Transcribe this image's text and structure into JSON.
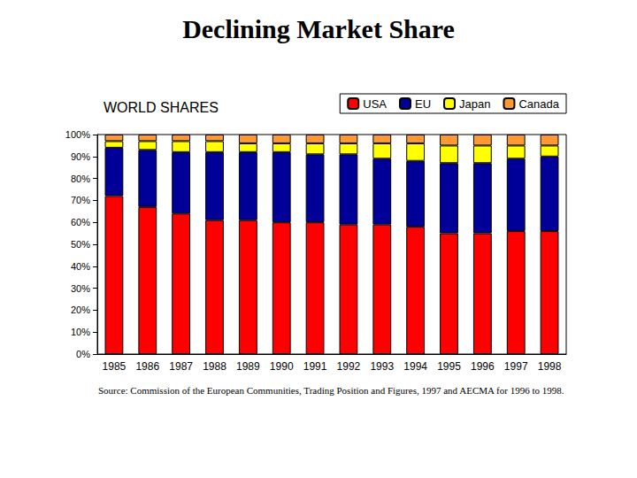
{
  "chart_data": {
    "type": "bar",
    "title": "Declining Market Share",
    "subtitle": "WORLD SHARES",
    "source": "Source: Commission of the European Communities, Trading Position and Figures, 1997 and AECMA for 1996 to 1998.",
    "categories": [
      "1985",
      "1986",
      "1987",
      "1988",
      "1989",
      "1990",
      "1991",
      "1992",
      "1993",
      "1994",
      "1995",
      "1996",
      "1997",
      "1998"
    ],
    "series": [
      {
        "name": "USA",
        "color": "#ff0000",
        "values": [
          72,
          67,
          64,
          61,
          61,
          60,
          60,
          59,
          59,
          58,
          55,
          55,
          56,
          56
        ]
      },
      {
        "name": "EU",
        "color": "#000099",
        "values": [
          22,
          26,
          28,
          31,
          31,
          32,
          31,
          32,
          30,
          30,
          32,
          32,
          33,
          34
        ]
      },
      {
        "name": "Japan",
        "color": "#ffff00",
        "values": [
          3,
          4,
          5,
          5,
          4,
          4,
          5,
          5,
          7,
          8,
          8,
          8,
          6,
          5
        ]
      },
      {
        "name": "Canada",
        "color": "#ff9933",
        "values": [
          3,
          3,
          3,
          3,
          4,
          4,
          4,
          4,
          4,
          4,
          5,
          5,
          5,
          5
        ]
      }
    ],
    "stacked": true,
    "ylim": [
      0,
      100
    ],
    "yticks": [
      {
        "value": 0,
        "label": "0%"
      },
      {
        "value": 10,
        "label": "10%"
      },
      {
        "value": 20,
        "label": "20%"
      },
      {
        "value": 30,
        "label": "30%"
      },
      {
        "value": 40,
        "label": "40%"
      },
      {
        "value": 50,
        "label": "50%"
      },
      {
        "value": 60,
        "label": "60%"
      },
      {
        "value": 70,
        "label": "70%"
      },
      {
        "value": 80,
        "label": "80%"
      },
      {
        "value": 90,
        "label": "90%"
      },
      {
        "value": 100,
        "label": "100%"
      }
    ],
    "grid": false,
    "legend": "top-right",
    "data_labels": false
  }
}
